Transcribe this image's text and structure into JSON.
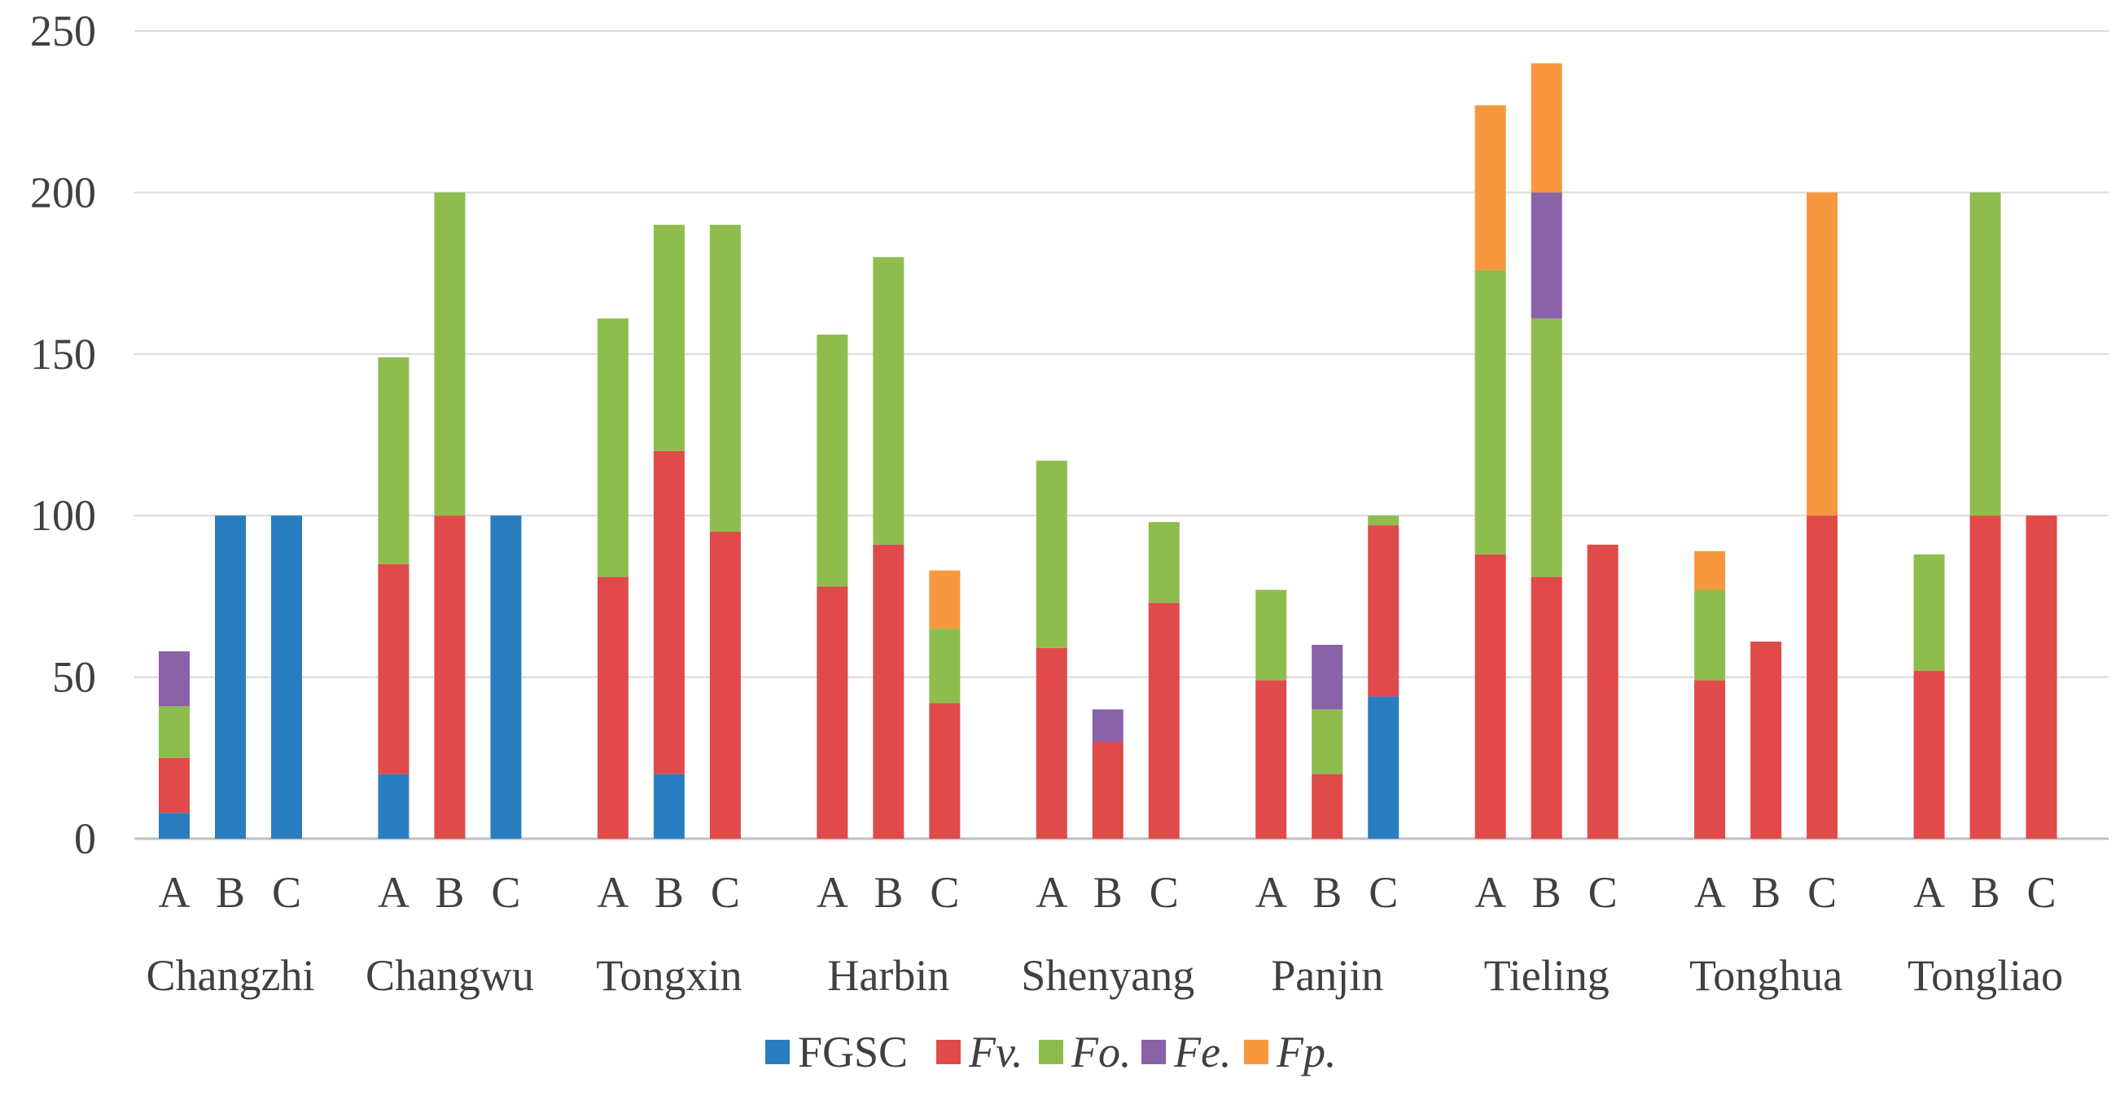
{
  "chart_data": {
    "type": "bar",
    "stacked": true,
    "title": "",
    "xlabel": "",
    "ylabel": "",
    "ylim": [
      0,
      250
    ],
    "yticks": [
      "0",
      "50",
      "100",
      "150",
      "200",
      "250"
    ],
    "grid": true,
    "legend_position": "bottom",
    "colors": {
      "FGSC": "#2a7ec0",
      "Fv.": "#e04a4a",
      "Fo.": "#8ebd4e",
      "Fe.": "#8a62a8",
      "Fp.": "#f7973e"
    },
    "series_names": [
      "FGSC",
      "Fv.",
      "Fo.",
      "Fe.",
      "Fp."
    ],
    "series_italic": [
      false,
      true,
      true,
      true,
      true
    ],
    "groups": [
      {
        "name": "Changzhi",
        "bars": [
          {
            "label": "A",
            "values": [
              8,
              17,
              16,
              17,
              0
            ]
          },
          {
            "label": "B",
            "values": [
              100,
              0,
              0,
              0,
              0
            ]
          },
          {
            "label": "C",
            "values": [
              100,
              0,
              0,
              0,
              0
            ]
          }
        ]
      },
      {
        "name": "Changwu",
        "bars": [
          {
            "label": "A",
            "values": [
              20,
              65,
              64,
              0,
              0
            ]
          },
          {
            "label": "B",
            "values": [
              0,
              100,
              100,
              0,
              0
            ]
          },
          {
            "label": "C",
            "values": [
              100,
              0,
              0,
              0,
              0
            ]
          }
        ]
      },
      {
        "name": "Tongxin",
        "bars": [
          {
            "label": "A",
            "values": [
              0,
              81,
              80,
              0,
              0
            ]
          },
          {
            "label": "B",
            "values": [
              20,
              100,
              70,
              0,
              0
            ]
          },
          {
            "label": "C",
            "values": [
              0,
              95,
              95,
              0,
              0
            ]
          }
        ]
      },
      {
        "name": "Harbin",
        "bars": [
          {
            "label": "A",
            "values": [
              0,
              78,
              78,
              0,
              0
            ]
          },
          {
            "label": "B",
            "values": [
              0,
              91,
              89,
              0,
              0
            ]
          },
          {
            "label": "C",
            "values": [
              0,
              42,
              23,
              0,
              18
            ]
          }
        ]
      },
      {
        "name": "Shenyang",
        "bars": [
          {
            "label": "A",
            "values": [
              0,
              59,
              58,
              0,
              0
            ]
          },
          {
            "label": "B",
            "values": [
              0,
              30,
              0,
              10,
              0
            ]
          },
          {
            "label": "C",
            "values": [
              0,
              73,
              25,
              0,
              0
            ]
          }
        ]
      },
      {
        "name": "Panjin",
        "bars": [
          {
            "label": "A",
            "values": [
              0,
              49,
              28,
              0,
              0
            ]
          },
          {
            "label": "B",
            "values": [
              0,
              20,
              20,
              20,
              0
            ]
          },
          {
            "label": "C",
            "values": [
              44,
              53,
              3,
              0,
              0
            ]
          }
        ]
      },
      {
        "name": "Tieling",
        "bars": [
          {
            "label": "A",
            "values": [
              0,
              88,
              88,
              0,
              51
            ]
          },
          {
            "label": "B",
            "values": [
              0,
              81,
              80,
              39,
              40
            ]
          },
          {
            "label": "C",
            "values": [
              0,
              91,
              0,
              0,
              0
            ]
          }
        ]
      },
      {
        "name": "Tonghua",
        "bars": [
          {
            "label": "A",
            "values": [
              0,
              49,
              28,
              0,
              12
            ]
          },
          {
            "label": "B",
            "values": [
              0,
              61,
              0,
              0,
              0
            ]
          },
          {
            "label": "C",
            "values": [
              0,
              100,
              0,
              0,
              100
            ]
          }
        ]
      },
      {
        "name": "Tongliao",
        "bars": [
          {
            "label": "A",
            "values": [
              0,
              52,
              36,
              0,
              0
            ]
          },
          {
            "label": "B",
            "values": [
              0,
              100,
              100,
              0,
              0
            ]
          },
          {
            "label": "C",
            "values": [
              0,
              100,
              0,
              0,
              0
            ]
          }
        ]
      }
    ]
  }
}
